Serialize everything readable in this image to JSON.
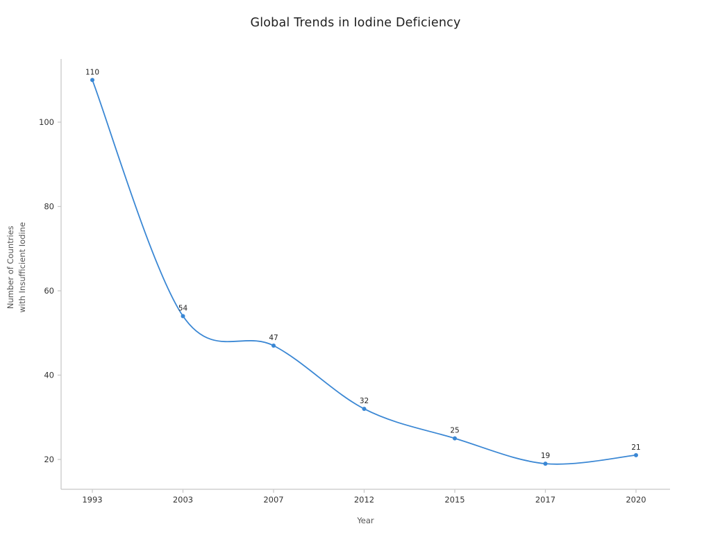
{
  "chart_data": {
    "type": "line",
    "title": "Global Trends in Iodine Deficiency",
    "xlabel": "Year",
    "ylabel_line1": "Number of Countries",
    "ylabel_line2": "with Insufficient Iodine",
    "categories": [
      "1993",
      "2003",
      "2007",
      "2012",
      "2015",
      "2017",
      "2020"
    ],
    "values": [
      110,
      54,
      47,
      32,
      25,
      19,
      21
    ],
    "yticks": [
      20,
      40,
      60,
      80,
      100
    ],
    "ylim": [
      13,
      115
    ],
    "curve": "spline",
    "grid": false,
    "legend": "none",
    "line_color": "#3a87d4",
    "marker_color": "#3a87d4",
    "axis_color": "#c8c8c8",
    "tick_label_color": "#333333",
    "data_label_color": "#222222",
    "background": "#ffffff"
  }
}
